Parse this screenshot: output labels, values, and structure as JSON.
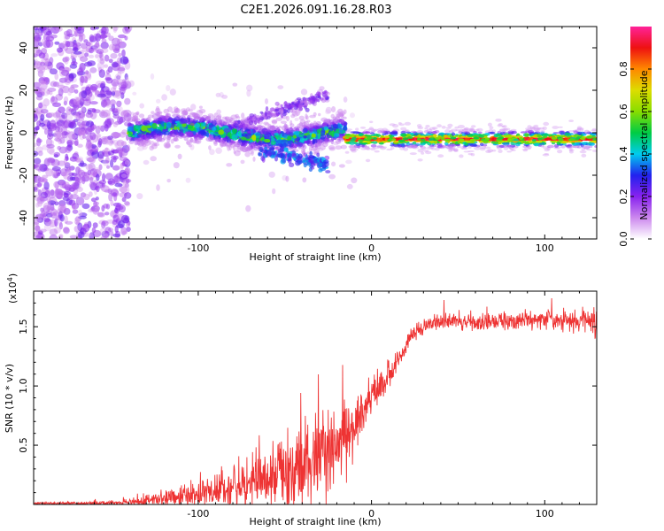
{
  "title": "C2E1.2026.091.16.28.R03",
  "colors": {
    "snr_line": "#ee3333",
    "spec_core": "#dd2222",
    "spec_noise": "#7722dd",
    "axis": "#000000"
  },
  "chart_data": [
    {
      "type": "heatmap",
      "name": "spectrogram",
      "title": "C2E1.2026.091.16.28.R03",
      "xlabel": "Height of straight line (km)",
      "ylabel": "Frequency (Hz)",
      "xlim": [
        -195,
        130
      ],
      "ylim": [
        -50,
        50
      ],
      "xticks": [
        -100,
        0,
        100
      ],
      "xtick_labels": [
        "-100",
        "0",
        "100"
      ],
      "yticks": [
        -40,
        -20,
        0,
        20,
        40
      ],
      "ytick_labels": [
        "-40",
        "-20",
        "0",
        "20",
        "40"
      ],
      "colorbar": {
        "label": "Normalized spectral amplitude",
        "range": [
          0,
          1
        ],
        "ticks": [
          0.0,
          0.2,
          0.4,
          0.6,
          0.8
        ],
        "tick_labels": [
          "0.0",
          "0.2",
          "0.4",
          "0.6",
          "0.8"
        ],
        "stops": [
          "#ffffff",
          "#cc88ee",
          "#8822ee",
          "#2222ee",
          "#00ccee",
          "#00cc44",
          "#88dd00",
          "#dddd00",
          "#ff8800",
          "#ee1111",
          "#ff2299"
        ]
      },
      "description_regions": [
        {
          "region": "noise",
          "x_range": [
            -195,
            -140
          ],
          "freq_range": [
            -50,
            50
          ],
          "amplitude": 0.15
        },
        {
          "region": "mixed",
          "x_range": [
            -140,
            -15
          ],
          "freq_center": 0,
          "freq_spread": 8,
          "amplitude": 0.35
        },
        {
          "region": "core",
          "x_range": [
            -15,
            130
          ],
          "freq_center": -3,
          "freq_spread": 2,
          "amplitude": 0.9
        }
      ]
    },
    {
      "type": "line",
      "name": "snr",
      "xlabel": "Height of straight line (km)",
      "ylabel": "SNR (10 * v/v)",
      "yscale_label": "(x10",
      "yscale_exp": "4",
      "yscale_suffix": ")",
      "xlim": [
        -195,
        130
      ],
      "ylim": [
        0,
        1.8
      ],
      "xticks": [
        -100,
        0,
        100
      ],
      "xtick_labels": [
        "-100",
        "0",
        "100"
      ],
      "yticks": [
        0.5,
        1.0,
        1.5
      ],
      "ytick_labels": [
        "0.5",
        "1.0",
        "1.5"
      ],
      "envelope": {
        "x": [
          -195,
          -160,
          -140,
          -120,
          -100,
          -80,
          -70,
          -60,
          -50,
          -40,
          -30,
          -20,
          -15,
          -10,
          -5,
          0,
          5,
          10,
          15,
          20,
          25,
          30,
          40,
          60,
          80,
          100,
          120,
          130
        ],
        "mean": [
          0.01,
          0.01,
          0.02,
          0.05,
          0.09,
          0.14,
          0.18,
          0.24,
          0.3,
          0.33,
          0.37,
          0.43,
          0.55,
          0.68,
          0.8,
          0.92,
          0.98,
          1.08,
          1.22,
          1.35,
          1.45,
          1.52,
          1.55,
          1.54,
          1.55,
          1.56,
          1.55,
          1.55
        ],
        "noise": [
          0.005,
          0.01,
          0.02,
          0.05,
          0.08,
          0.12,
          0.15,
          0.2,
          0.26,
          0.3,
          0.3,
          0.25,
          0.22,
          0.18,
          0.15,
          0.12,
          0.1,
          0.08,
          0.07,
          0.06,
          0.05,
          0.05,
          0.05,
          0.05,
          0.05,
          0.06,
          0.07,
          0.08
        ]
      }
    }
  ]
}
